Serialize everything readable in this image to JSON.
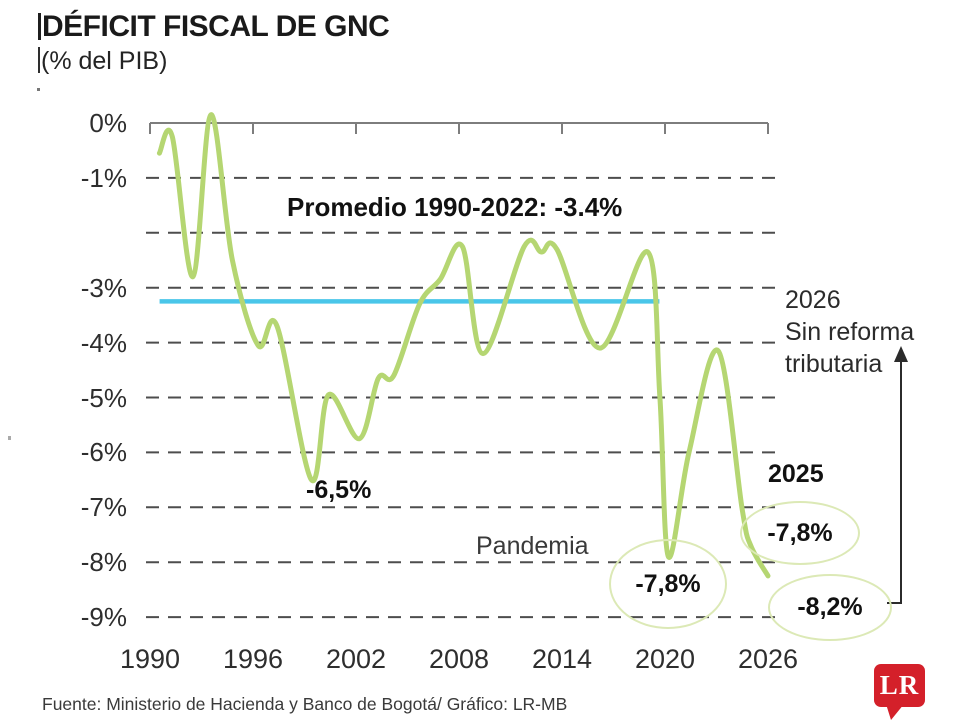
{
  "header": {
    "title": "DÉFICIT FISCAL DE GNC",
    "subtitle": "(% del PIB)"
  },
  "footer": {
    "source": "Fuente: Ministerio de Hacienda y Banco de Bogotá/ Gráfico: LR-MB"
  },
  "logo": {
    "text": "LR",
    "bg_color": "#d4202a",
    "text_color": "#ffffff"
  },
  "colors": {
    "series_line": "#b5d672",
    "average_line": "#4ac6e9",
    "gridline": "#4d4d4d",
    "axis": "#7d7d7d",
    "annotation_ellipse": "#dce9b6",
    "arrow": "#2b2b2b",
    "text": "#1c1c1c"
  },
  "chart_data": {
    "type": "line",
    "title": "DÉFICIT FISCAL DE GNC",
    "units": "% del PIB",
    "xlim": [
      1990,
      2026
    ],
    "ylim": [
      -9,
      0.3
    ],
    "grid": "horizontal-dashed",
    "x_ticks": [
      {
        "year": 1990,
        "label": "1990"
      },
      {
        "year": 1996,
        "label": "1996"
      },
      {
        "year": 2002,
        "label": "2002"
      },
      {
        "year": 2008,
        "label": "2008"
      },
      {
        "year": 2014,
        "label": "2014"
      },
      {
        "year": 2020,
        "label": "2020"
      },
      {
        "year": 2026,
        "label": "2026"
      }
    ],
    "y_ticks": [
      {
        "value": 0,
        "label": "0%"
      },
      {
        "value": -1,
        "label": "-1%"
      },
      {
        "value": -2,
        "label": ""
      },
      {
        "value": -3,
        "label": "-3%"
      },
      {
        "value": -4,
        "label": "-4%"
      },
      {
        "value": -5,
        "label": "-5%"
      },
      {
        "value": -6,
        "label": "-6%"
      },
      {
        "value": -7,
        "label": "-7%"
      },
      {
        "value": -8,
        "label": "-8%"
      },
      {
        "value": -9,
        "label": "-9%"
      }
    ],
    "series": [
      {
        "name": "Déficit fiscal del GNC (% del PIB)",
        "color": "#b5d672",
        "points": [
          [
            1990.55,
            -0.55
          ],
          [
            1991.3,
            -0.25
          ],
          [
            1992.5,
            -2.8
          ],
          [
            1993.55,
            0.15
          ],
          [
            1994.8,
            -2.5
          ],
          [
            1996.3,
            -4.05
          ],
          [
            1997.4,
            -3.7
          ],
          [
            1999.4,
            -6.5
          ],
          [
            2000.4,
            -4.95
          ],
          [
            2002.2,
            -5.75
          ],
          [
            2003.3,
            -4.65
          ],
          [
            2004.2,
            -4.6
          ],
          [
            2005.7,
            -3.3
          ],
          [
            2006.9,
            -2.85
          ],
          [
            2008.2,
            -2.25
          ],
          [
            2009.4,
            -4.2
          ],
          [
            2011.8,
            -2.25
          ],
          [
            2012.8,
            -2.35
          ],
          [
            2013.7,
            -2.3
          ],
          [
            2016.2,
            -4.1
          ],
          [
            2019.0,
            -2.35
          ],
          [
            2019.7,
            -5.0
          ],
          [
            2020.2,
            -7.9
          ],
          [
            2021.4,
            -6.0
          ],
          [
            2023.1,
            -4.15
          ],
          [
            2024.5,
            -7.05
          ],
          [
            2025.0,
            -7.7
          ],
          [
            2026.0,
            -8.25
          ]
        ]
      }
    ],
    "average_line": {
      "label": "Promedio 1990-2022: -3.4%",
      "value": -3.4,
      "drawn_at_value": -3.25,
      "span_years": [
        1990.5,
        2019.5
      ],
      "color": "#4ac6e9"
    },
    "annotations": {
      "dip1999": {
        "label": "-6,5%",
        "year": 1999,
        "value": -6.5
      },
      "pandemia": {
        "label": "Pandemia"
      },
      "dip2020": {
        "label": "-7,8%",
        "year": 2020,
        "value": -7.8,
        "circled": true
      },
      "year2025": {
        "label": "2025"
      },
      "val2025": {
        "label": "-7,8%",
        "year": 2025,
        "value": -7.8,
        "circled": true
      },
      "val2026": {
        "label": "-8,2%",
        "year": 2026,
        "value": -8.2,
        "circled": true
      },
      "note2026": {
        "line1": "2026",
        "line2": "Sin reforma",
        "line3": "tributaria"
      }
    }
  }
}
